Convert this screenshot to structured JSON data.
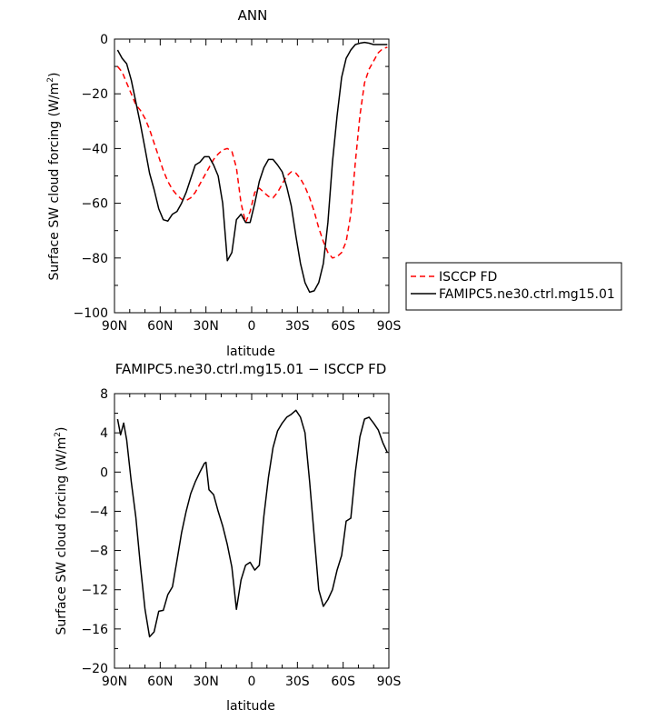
{
  "chart_data": [
    {
      "type": "line",
      "title": "ANN",
      "xlabel": "latitude",
      "ylabel": "Surface SW cloud forcing (W/m²)",
      "ylabel_main": "Surface SW cloud forcing (W/m",
      "ylabel_sup": "2",
      "ylabel_close": ")",
      "xlim": [
        90,
        -90
      ],
      "ylim": [
        -100,
        0
      ],
      "x_ticks": [
        90,
        60,
        30,
        0,
        -30,
        -60,
        -90
      ],
      "x_tick_labels": [
        "90N",
        "60N",
        "30N",
        "0",
        "30S",
        "60S",
        "90S"
      ],
      "y_ticks": [
        0,
        -20,
        -40,
        -60,
        -80,
        -100
      ],
      "y_tick_labels": [
        "0",
        "−20",
        "−40",
        "−60",
        "−80",
        "−100"
      ],
      "grid": false,
      "legend": "outside-right",
      "series": [
        {
          "name": "ISCCP FD",
          "color": "#ff0000",
          "dash": "dashed",
          "x": [
            88,
            85,
            82,
            79,
            76,
            73,
            70,
            67,
            64,
            61,
            58,
            55,
            52,
            49,
            46,
            43,
            40,
            37,
            34,
            31,
            28,
            25,
            22,
            19,
            16,
            13,
            10,
            7,
            4,
            1,
            -2,
            -5,
            -8,
            -11,
            -14,
            -17,
            -20,
            -23,
            -26,
            -29,
            -32,
            -35,
            -38,
            -41,
            -44,
            -47,
            -50,
            -53,
            -56,
            -59,
            -62,
            -65,
            -68,
            -71,
            -74,
            -77,
            -80,
            -83,
            -86,
            -89
          ],
          "values": [
            -10,
            -12,
            -16,
            -20,
            -24,
            -26,
            -29,
            -33,
            -38,
            -43,
            -48,
            -52,
            -55,
            -57,
            -58.5,
            -59,
            -58,
            -56,
            -53,
            -50,
            -47,
            -44,
            -42,
            -40.5,
            -40,
            -41,
            -47,
            -60,
            -67,
            -63,
            -56,
            -54.5,
            -56,
            -57.5,
            -58,
            -56,
            -53,
            -50,
            -48.5,
            -49,
            -51,
            -54,
            -58,
            -63,
            -69,
            -74,
            -78,
            -80,
            -79.5,
            -78,
            -74,
            -64,
            -45,
            -28,
            -16,
            -11,
            -8,
            -5,
            -3.5,
            -3
          ]
        },
        {
          "name": "FAMIPC5.ne30.ctrl.mg15.01",
          "color": "#000000",
          "dash": "solid",
          "x": [
            88,
            85,
            82,
            79,
            76,
            73,
            70,
            67,
            64,
            61,
            58,
            55,
            52,
            49,
            46,
            43,
            40,
            37,
            34,
            31,
            28,
            25,
            22,
            19,
            16,
            13,
            10,
            7,
            4,
            1,
            -2,
            -5,
            -8,
            -11,
            -14,
            -17,
            -20,
            -23,
            -26,
            -29,
            -32,
            -35,
            -38,
            -41,
            -44,
            -47,
            -50,
            -53,
            -56,
            -59,
            -62,
            -65,
            -68,
            -71,
            -74,
            -77,
            -80,
            -83,
            -86,
            -89
          ],
          "values": [
            -4,
            -7,
            -9,
            -15,
            -23,
            -31,
            -40,
            -49,
            -55,
            -62,
            -66,
            -66.5,
            -64,
            -63,
            -60,
            -56,
            -51,
            -46,
            -45,
            -43,
            -43,
            -46,
            -50,
            -60,
            -81,
            -78,
            -66,
            -64,
            -67,
            -67,
            -60,
            -52,
            -47,
            -44,
            -44,
            -46,
            -48.5,
            -54,
            -61,
            -72,
            -82,
            -89,
            -92.5,
            -92,
            -89,
            -82,
            -67,
            -45,
            -28,
            -14,
            -7,
            -4,
            -2,
            -1.5,
            -1.2,
            -1.5,
            -2,
            -2,
            -2,
            -2
          ]
        }
      ]
    },
    {
      "type": "line",
      "title": "FAMIPC5.ne30.ctrl.mg15.01 − ISCCP FD",
      "xlabel": "latitude",
      "ylabel": "Surface SW cloud forcing (W/m²)",
      "ylabel_main": "Surface SW cloud forcing (W/m",
      "ylabel_sup": "2",
      "ylabel_close": ")",
      "xlim": [
        90,
        -90
      ],
      "ylim": [
        -20,
        8
      ],
      "x_ticks": [
        90,
        60,
        30,
        0,
        -30,
        -60,
        -90
      ],
      "x_tick_labels": [
        "90N",
        "60N",
        "30N",
        "0",
        "30S",
        "60S",
        "90S"
      ],
      "y_ticks": [
        8,
        4,
        0,
        -4,
        -8,
        -12,
        -16,
        -20
      ],
      "y_tick_labels": [
        "8",
        "4",
        "0",
        "−4",
        "−8",
        "−12",
        "−16",
        "−20"
      ],
      "grid": false,
      "series": [
        {
          "name": "",
          "color": "#000000",
          "dash": "solid",
          "x": [
            88,
            86,
            84,
            82,
            79,
            76,
            73,
            70,
            67,
            64,
            61,
            58,
            55,
            52,
            49,
            46,
            43,
            40,
            37,
            34,
            31,
            30,
            28,
            25,
            22,
            19,
            16,
            13,
            10,
            7,
            4,
            1,
            -2,
            -5,
            -8,
            -11,
            -14,
            -17,
            -20,
            -23,
            -26,
            -29,
            -32,
            -35,
            -38,
            -41,
            -44,
            -47,
            -50,
            -53,
            -56,
            -59,
            -62,
            -65,
            -68,
            -71,
            -74,
            -77,
            -80,
            -83,
            -86,
            -89
          ],
          "values": [
            5.4,
            3.8,
            5,
            3.3,
            -1,
            -4.6,
            -9.5,
            -14,
            -16.8,
            -16.3,
            -14.2,
            -14.1,
            -12.5,
            -11.7,
            -9,
            -6.2,
            -4,
            -2.2,
            -1,
            0,
            0.9,
            1,
            -1.8,
            -2.3,
            -4,
            -5.5,
            -7.4,
            -9.7,
            -14,
            -11,
            -9.5,
            -9.2,
            -10,
            -9.5,
            -4.5,
            -0.5,
            2.5,
            4.2,
            5,
            5.6,
            5.9,
            6.3,
            5.6,
            4,
            -1,
            -6.5,
            -12,
            -13.7,
            -13,
            -12,
            -10,
            -8.5,
            -5,
            -4.7,
            0,
            3.6,
            5.4,
            5.6,
            5,
            4.3,
            3,
            2
          ]
        }
      ]
    }
  ]
}
